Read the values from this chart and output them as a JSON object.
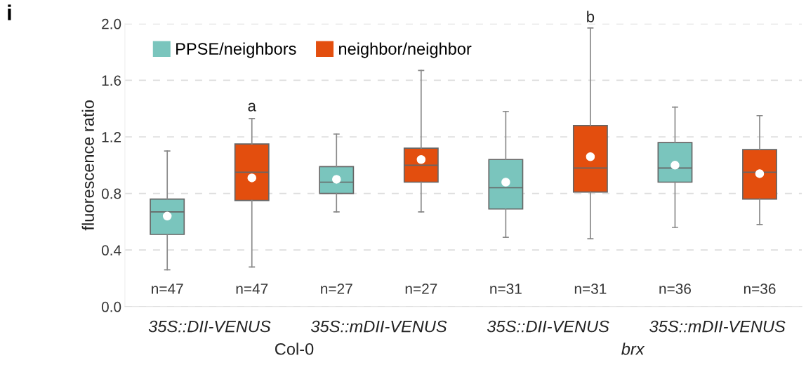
{
  "chart_data": {
    "type": "box",
    "ylabel": "fluorescence ratio",
    "categories": [
      "n=47",
      "n=47",
      "n=27",
      "n=27",
      "n=31",
      "n=31",
      "n=36",
      "n=36"
    ],
    "series": [
      {
        "name": "PPSE/neighbors",
        "color": "#7ac5bd",
        "boxes": [
          {
            "low": 0.26,
            "q1": 0.51,
            "median": 0.67,
            "q3": 0.76,
            "high": 1.1,
            "mean": 0.64
          },
          null,
          {
            "low": 0.67,
            "q1": 0.8,
            "median": 0.88,
            "q3": 0.99,
            "high": 1.22,
            "mean": 0.9
          },
          null,
          {
            "low": 0.49,
            "q1": 0.69,
            "median": 0.84,
            "q3": 1.04,
            "high": 1.38,
            "mean": 0.88
          },
          null,
          {
            "low": 0.56,
            "q1": 0.88,
            "median": 0.98,
            "q3": 1.16,
            "high": 1.41,
            "mean": 1.0
          },
          null
        ]
      },
      {
        "name": "neighbor/neighbor",
        "color": "#e34e0e",
        "boxes": [
          null,
          {
            "low": 0.28,
            "q1": 0.75,
            "median": 0.95,
            "q3": 1.15,
            "high": 1.33,
            "mean": 0.91
          },
          null,
          {
            "low": 0.67,
            "q1": 0.88,
            "median": 1.0,
            "q3": 1.12,
            "high": 1.67,
            "mean": 1.04
          },
          null,
          {
            "low": 0.48,
            "q1": 0.81,
            "median": 0.98,
            "q3": 1.28,
            "high": 1.97,
            "mean": 1.06
          },
          null,
          {
            "low": 0.58,
            "q1": 0.76,
            "median": 0.95,
            "q3": 1.11,
            "high": 1.35,
            "mean": 0.94
          }
        ]
      }
    ],
    "ylim": [
      0,
      2.0
    ],
    "yticks": [
      {
        "value": 0,
        "label": "0.0"
      },
      0.4,
      0.8,
      1.2,
      1.6,
      {
        "value": 2,
        "label": "2.0"
      }
    ],
    "grid": "y",
    "legend": "top left",
    "annotations": [
      "i",
      "a",
      "b",
      "35S::DII-VENUS",
      "35S::mDII-VENUS",
      "35S::DII-VENUS",
      "35S::mDII-VENUS",
      "Col-0",
      "brx"
    ]
  }
}
